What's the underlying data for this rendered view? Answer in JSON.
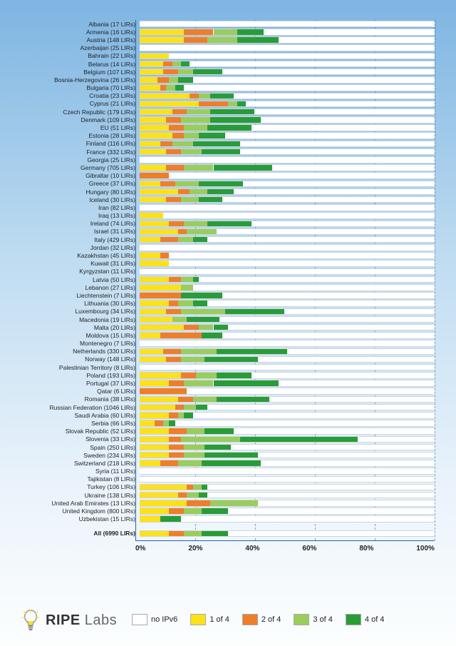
{
  "chart": {
    "type": "stacked-horizontal-bar",
    "xlim": [
      0,
      100
    ],
    "xticks": [
      0,
      20,
      40,
      60,
      80,
      100
    ],
    "xtick_labels": [
      "0%",
      "20%",
      "40%",
      "60%",
      "80%",
      "100%"
    ],
    "grid_color": "#2b5fa0",
    "grid_dash": true,
    "background": "linear-gradient(#7eb5e2,#fcfefe)",
    "bar_track_color": "#ffffff",
    "bar_track_border": "#c9d6e2",
    "label_fontsize": 8.5,
    "axis_fontsize": 10,
    "legend": {
      "items": [
        {
          "label": "no IPv6",
          "color": "#ffffff",
          "border": "#aaaaaa"
        },
        {
          "label": "1 of 4",
          "color": "#ffe11a"
        },
        {
          "label": "2 of 4",
          "color": "#ef7e29"
        },
        {
          "label": "3 of 4",
          "color": "#9acd5b"
        },
        {
          "label": "4 of 4",
          "color": "#2a9c35"
        }
      ]
    },
    "series_colors": {
      "s1": "#ffe11a",
      "s2": "#ef7e29",
      "s3": "#9acd5b",
      "s4": "#2a9c35"
    },
    "countries": [
      {
        "name": "Albania (17 LIRs)",
        "v": [
          0,
          0,
          0,
          0
        ]
      },
      {
        "name": "Armenia (16 LIRs)",
        "v": [
          15,
          10,
          8,
          9
        ]
      },
      {
        "name": "Austria (148 LIRs)",
        "v": [
          15,
          8,
          10,
          14
        ]
      },
      {
        "name": "Azerbaijan (25 LIRs)",
        "v": [
          0,
          0,
          0,
          0
        ]
      },
      {
        "name": "Bahrain (22 LIRs)",
        "v": [
          10,
          0,
          0,
          0
        ]
      },
      {
        "name": "Belarus (14 LIRs)",
        "v": [
          8,
          3,
          3,
          3
        ]
      },
      {
        "name": "Belgium (107 LIRs)",
        "v": [
          8,
          5,
          5,
          10
        ]
      },
      {
        "name": "Bosnia-Herzegovina (26 LIRs)",
        "v": [
          6,
          4,
          3,
          5
        ]
      },
      {
        "name": "Bulgaria (70 LIRs)",
        "v": [
          7,
          2,
          3,
          3
        ]
      },
      {
        "name": "Croatia (23 LIRs)",
        "v": [
          17,
          3,
          4,
          8
        ]
      },
      {
        "name": "Cyprus (21 LIRs)",
        "v": [
          20,
          10,
          3,
          3
        ]
      },
      {
        "name": "Czech Republic (179 LIRs)",
        "v": [
          11,
          5,
          8,
          15
        ]
      },
      {
        "name": "Denmark (109 LIRs)",
        "v": [
          9,
          5,
          10,
          17
        ]
      },
      {
        "name": "EU (51 LIRs)",
        "v": [
          10,
          5,
          8,
          15
        ]
      },
      {
        "name": "Estonia (28 LIRs)",
        "v": [
          11,
          4,
          5,
          9
        ]
      },
      {
        "name": "Finland (116 LIRs)",
        "v": [
          7,
          4,
          7,
          16
        ]
      },
      {
        "name": "France (332 LIRs)",
        "v": [
          9,
          5,
          7,
          13
        ]
      },
      {
        "name": "Georgia (25 LIRs)",
        "v": [
          0,
          0,
          0,
          0
        ]
      },
      {
        "name": "Germany (705 LIRs)",
        "v": [
          9,
          6,
          10,
          20
        ]
      },
      {
        "name": "Gibraltar (10 LIRs)",
        "v": [
          0,
          10,
          0,
          0
        ]
      },
      {
        "name": "Greece (37 LIRs)",
        "v": [
          7,
          5,
          8,
          15
        ]
      },
      {
        "name": "Hungary (80 LIRs)",
        "v": [
          13,
          4,
          6,
          9
        ]
      },
      {
        "name": "Iceland (30 LIRs)",
        "v": [
          9,
          5,
          6,
          8
        ]
      },
      {
        "name": "Iran (82 LIRs)",
        "v": [
          0,
          0,
          0,
          0
        ]
      },
      {
        "name": "Iraq (13 LIRs)",
        "v": [
          8,
          0,
          0,
          0
        ]
      },
      {
        "name": "Ireland (74 LIRs)",
        "v": [
          10,
          5,
          8,
          15
        ]
      },
      {
        "name": "Israel (31 LIRs)",
        "v": [
          13,
          3,
          10,
          0
        ]
      },
      {
        "name": "Italy (429 LIRs)",
        "v": [
          7,
          6,
          5,
          5
        ]
      },
      {
        "name": "Jordan (32 LIRs)",
        "v": [
          0,
          0,
          0,
          0
        ]
      },
      {
        "name": "Kazakhstan (45 LIRs)",
        "v": [
          7,
          3,
          0,
          0
        ]
      },
      {
        "name": "Kuwait (31 LIRs)",
        "v": [
          10,
          0,
          0,
          0
        ]
      },
      {
        "name": "Kyrgyzstan (11 LIRs)",
        "v": [
          0,
          0,
          0,
          0
        ]
      },
      {
        "name": "Latvia (50 LIRs)",
        "v": [
          10,
          4,
          4,
          2
        ]
      },
      {
        "name": "Lebanon (27 LIRs)",
        "v": [
          14,
          0,
          4,
          0
        ]
      },
      {
        "name": "Liechtenstein (7 LIRs)",
        "v": [
          0,
          14,
          0,
          14
        ]
      },
      {
        "name": "Lithuania (30 LIRs)",
        "v": [
          10,
          3,
          5,
          5
        ]
      },
      {
        "name": "Luxembourg (34 LIRs)",
        "v": [
          9,
          5,
          15,
          20
        ]
      },
      {
        "name": "Macedonia (19 LIRs)",
        "v": [
          11,
          0,
          5,
          11
        ]
      },
      {
        "name": "Malta (20 LIRs)",
        "v": [
          15,
          5,
          5,
          5
        ]
      },
      {
        "name": "Moldova (15 LIRs)",
        "v": [
          7,
          14,
          0,
          7
        ]
      },
      {
        "name": "Montenegro (7 LIRs)",
        "v": [
          0,
          0,
          0,
          0
        ]
      },
      {
        "name": "Netherlands (330 LIRs)",
        "v": [
          8,
          6,
          12,
          24
        ]
      },
      {
        "name": "Norway (148 LIRs)",
        "v": [
          9,
          5,
          8,
          18
        ]
      },
      {
        "name": "Palestinian Territory (8 LIRs)",
        "v": [
          0,
          0,
          0,
          0
        ]
      },
      {
        "name": "Poland (193 LIRs)",
        "v": [
          14,
          5,
          7,
          12
        ]
      },
      {
        "name": "Portugal (37 LIRs)",
        "v": [
          10,
          5,
          10,
          22
        ]
      },
      {
        "name": "Qatar (6 LIRs)",
        "v": [
          0,
          16,
          0,
          0
        ]
      },
      {
        "name": "Romania (38 LIRs)",
        "v": [
          13,
          5,
          8,
          18
        ]
      },
      {
        "name": "Russian Federation (1046 LIRs)",
        "v": [
          12,
          3,
          4,
          4
        ]
      },
      {
        "name": "Saudi Arabia (60 LIRs)",
        "v": [
          10,
          3,
          2,
          3
        ]
      },
      {
        "name": "Serbia (66 LIRs)",
        "v": [
          5,
          3,
          2,
          2
        ]
      },
      {
        "name": "Slovak Republic (52 LIRs)",
        "v": [
          10,
          6,
          6,
          10
        ]
      },
      {
        "name": "Slovenia (33 LIRs)",
        "v": [
          10,
          4,
          20,
          40
        ]
      },
      {
        "name": "Spain (250 LIRs)",
        "v": [
          10,
          5,
          7,
          9
        ]
      },
      {
        "name": "Sweden (234 LIRs)",
        "v": [
          10,
          5,
          7,
          18
        ]
      },
      {
        "name": "Switzerland (218 LIRs)",
        "v": [
          7,
          6,
          8,
          20
        ]
      },
      {
        "name": "Syria (11 LIRs)",
        "v": [
          0,
          0,
          0,
          0
        ]
      },
      {
        "name": "Tajikistan (8 LIRs)",
        "v": [
          0,
          0,
          0,
          0
        ]
      },
      {
        "name": "Turkey (106 LIRs)",
        "v": [
          16,
          2,
          3,
          2
        ]
      },
      {
        "name": "Ukraine (138 LIRs)",
        "v": [
          13,
          3,
          4,
          3
        ]
      },
      {
        "name": "United Arab Emirates (13 LIRs)",
        "v": [
          16,
          8,
          16,
          0
        ]
      },
      {
        "name": "United Kingdom (800 LIRs)",
        "v": [
          10,
          5,
          6,
          9
        ]
      },
      {
        "name": "Uzbekistan (15 LIRs)",
        "v": [
          7,
          0,
          0,
          7
        ]
      }
    ],
    "summary": {
      "name": "All (6990 LIRs)",
      "v": [
        10,
        5,
        6,
        9
      ]
    }
  },
  "branding": {
    "logo_bold": "RIPE",
    "logo_light": " Labs",
    "bulb_outline": "#556",
    "bulb_fill": "#ffe11a"
  }
}
